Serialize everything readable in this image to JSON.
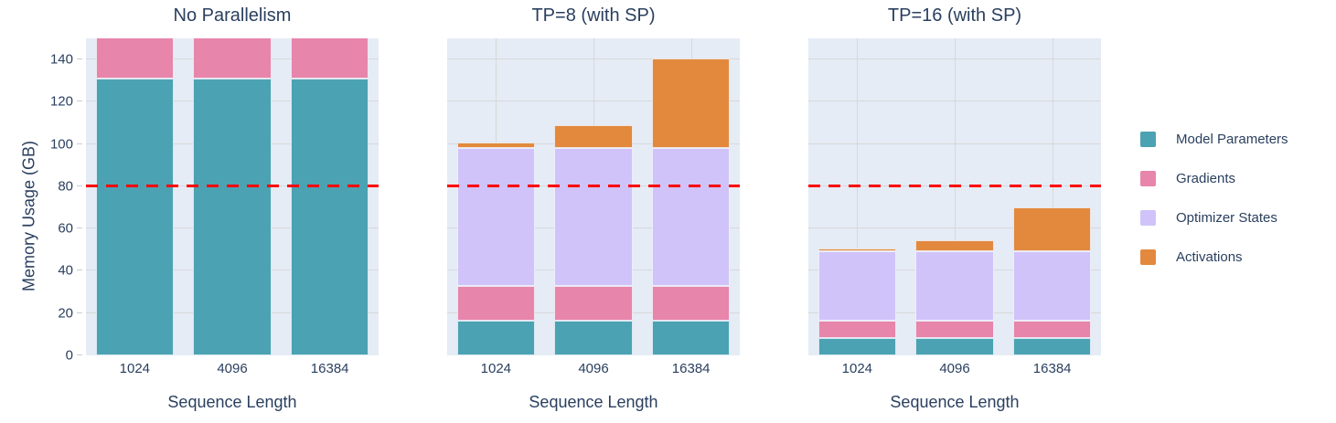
{
  "figure": {
    "y_axis": {
      "title": "Memory Usage (GB)",
      "ticks": [
        0,
        20,
        40,
        60,
        80,
        100,
        120,
        140
      ],
      "range": [
        0,
        150
      ]
    },
    "x_axis_title": "Sequence Length",
    "threshold_line": {
      "value": 80,
      "color": "#ff0000",
      "style": "dashed"
    },
    "series_colors": {
      "Model Parameters": "#4ba2b2",
      "Gradients": "#e785ab",
      "Optimizer States": "#d0c3fa",
      "Activations": "#e2893e"
    },
    "plot_background": "#e5ecf6",
    "gridline_color": "#d8d8d8",
    "text_color": "#2a3f5f",
    "legend": [
      {
        "label": "Model Parameters",
        "color": "#4ba2b2"
      },
      {
        "label": "Gradients",
        "color": "#e785ab"
      },
      {
        "label": "Optimizer States",
        "color": "#d0c3fa"
      },
      {
        "label": "Activations",
        "color": "#e2893e"
      }
    ]
  },
  "chart_data": [
    {
      "type": "bar",
      "stacked": true,
      "title": "No Parallelism",
      "categories": [
        "1024",
        "4096",
        "16384"
      ],
      "series": [
        {
          "name": "Model Parameters",
          "values": [
            131.1,
            131.1,
            131.1
          ]
        },
        {
          "name": "Gradients",
          "values": [
            131.1,
            131.1,
            131.1
          ]
        }
      ],
      "xlabel": "Sequence Length",
      "ylabel": "Memory Usage (GB)",
      "ylim": [
        0,
        150
      ],
      "clipped_at_top": true,
      "hline": 80
    },
    {
      "type": "bar",
      "stacked": true,
      "title": "TP=8 (with SP)",
      "categories": [
        "1024",
        "4096",
        "16384"
      ],
      "series": [
        {
          "name": "Model Parameters",
          "values": [
            16.4,
            16.4,
            16.4
          ]
        },
        {
          "name": "Gradients",
          "values": [
            16.4,
            16.4,
            16.4
          ]
        },
        {
          "name": "Optimizer States",
          "values": [
            65.5,
            65.5,
            65.5
          ]
        },
        {
          "name": "Activations",
          "values": [
            2.6,
            10.5,
            42.0
          ]
        }
      ],
      "xlabel": "Sequence Length",
      "ylabel": "Memory Usage (GB)",
      "ylim": [
        0,
        150
      ],
      "clipped_at_top": false,
      "hline": 80
    },
    {
      "type": "bar",
      "stacked": true,
      "title": "TP=16 (with SP)",
      "categories": [
        "1024",
        "4096",
        "16384"
      ],
      "series": [
        {
          "name": "Model Parameters",
          "values": [
            8.2,
            8.2,
            8.2
          ]
        },
        {
          "name": "Gradients",
          "values": [
            8.2,
            8.2,
            8.2
          ]
        },
        {
          "name": "Optimizer States",
          "values": [
            32.8,
            32.8,
            32.8
          ]
        },
        {
          "name": "Activations",
          "values": [
            1.3,
            5.2,
            21.0
          ]
        }
      ],
      "xlabel": "Sequence Length",
      "ylabel": "Memory Usage (GB)",
      "ylim": [
        0,
        150
      ],
      "clipped_at_top": false,
      "hline": 80
    }
  ]
}
